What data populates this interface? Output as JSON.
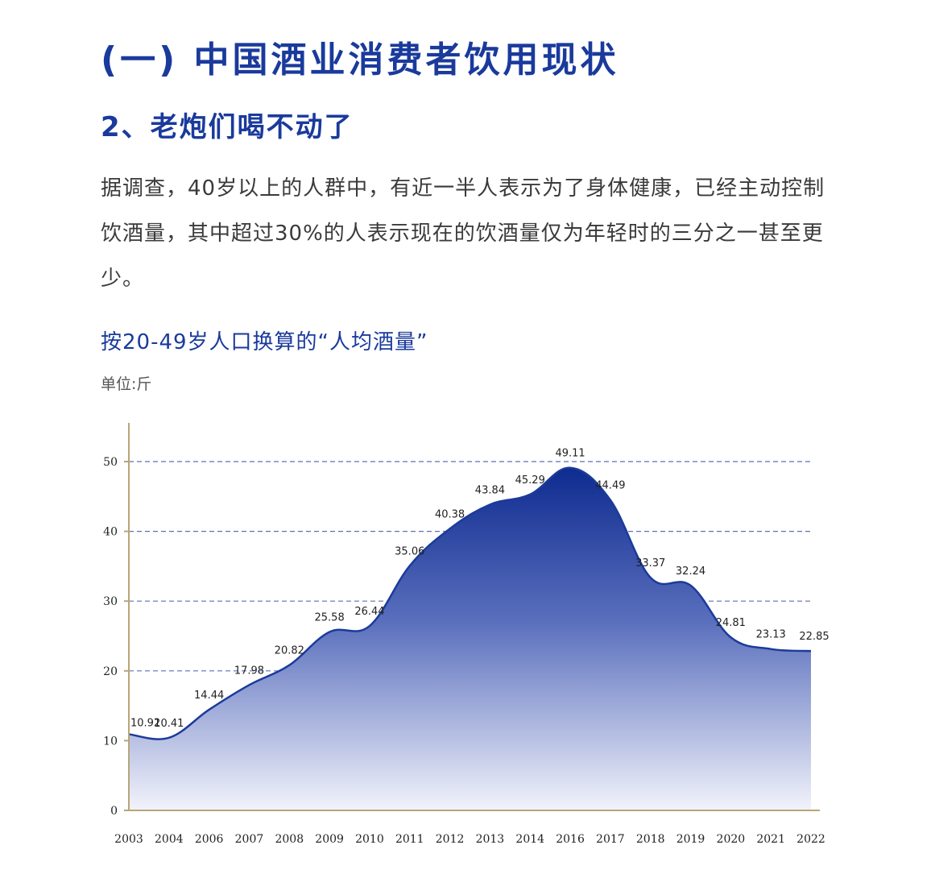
{
  "header": {
    "section_title": "(一) 中国酒业消费者饮用现状",
    "sub_title": "2、老炮们喝不动了",
    "body_text": "据调查，40岁以上的人群中，有近一半人表示为了身体健康，已经主动控制饮酒量，其中超过30%的人表示现在的饮酒量仅为年轻时的三分之一甚至更少。"
  },
  "chart_data": {
    "type": "area",
    "title": "按20-49岁人口换算的“人均酒量”",
    "unit": "单位:斤",
    "categories": [
      "2003",
      "2004",
      "2006",
      "2007",
      "2008",
      "2009",
      "2010",
      "2011",
      "2012",
      "2013",
      "2014",
      "2016",
      "2017",
      "2018",
      "2019",
      "2020",
      "2021",
      "2022"
    ],
    "values": [
      10.92,
      10.41,
      14.44,
      17.98,
      20.82,
      25.58,
      26.44,
      35.06,
      40.38,
      43.84,
      45.29,
      49.11,
      44.49,
      33.37,
      32.24,
      24.81,
      23.13,
      22.85
    ],
    "y_ticks": [
      "0",
      "10",
      "20",
      "30",
      "40",
      "50"
    ],
    "ylim": [
      0,
      50
    ],
    "grid": true,
    "colors": {
      "area_top": "#0e2b8f",
      "area_bottom": "#f2f3fb",
      "line": "#1b3b9a",
      "grid": "#2b3f9e",
      "axis": "#b8a57a"
    }
  }
}
